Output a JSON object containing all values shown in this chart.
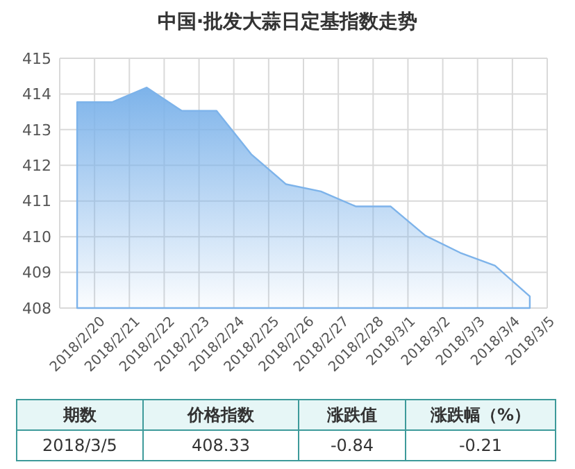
{
  "chart_data": {
    "type": "area",
    "title": "中国·批发大蒜日定基指数走势",
    "categories": [
      "2018/2/20",
      "2018/2/21",
      "2018/2/22",
      "2018/2/23",
      "2018/2/24",
      "2018/2/25",
      "2018/2/26",
      "2018/2/27",
      "2018/2/28",
      "2018/3/1",
      "2018/3/2",
      "2018/3/3",
      "2018/3/4",
      "2018/3/5"
    ],
    "series": [
      {
        "color": "#7db3ea",
        "values": [
          413.77,
          413.77,
          414.18,
          413.53,
          413.53,
          412.31,
          411.47,
          411.27,
          410.85,
          410.85,
          410.03,
          409.55,
          409.19,
          408.33
        ]
      }
    ],
    "ylim": [
      408,
      415
    ],
    "yticks": [
      408,
      409,
      410,
      411,
      412,
      413,
      414,
      415
    ],
    "grid": true,
    "annotations": [
      "期数",
      "价格指数",
      "涨跌值",
      "涨跌幅（%）",
      "2018/3/5",
      "408.33",
      "-0.84",
      "-0.21"
    ]
  }
}
